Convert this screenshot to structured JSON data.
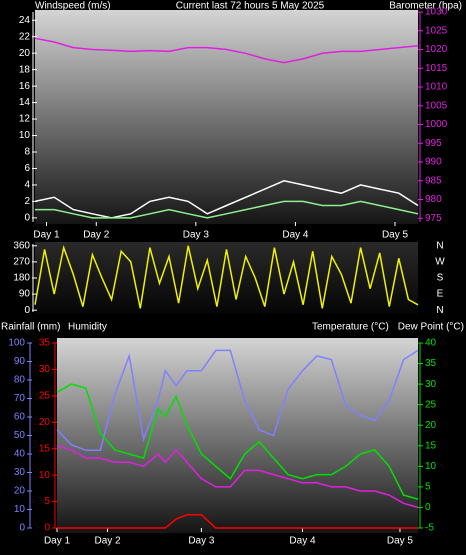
{
  "chart_data": [
    {
      "type": "line",
      "title": "Current last 72 hours 5 May 2025",
      "y_label": "Windspeed (m/s)",
      "y2_label": "Barometer (hpa)",
      "x": [
        0,
        5,
        10,
        15,
        20,
        25,
        30,
        35,
        40,
        45,
        50,
        55,
        60,
        65,
        70,
        75,
        80,
        85,
        90,
        95,
        100
      ],
      "xlim": [
        0,
        100
      ],
      "xticks": [
        {
          "value": 3,
          "label": "Day 1"
        },
        {
          "value": 16,
          "label": "Day 2"
        },
        {
          "value": 42,
          "label": "Day 3"
        },
        {
          "value": 68,
          "label": "Day 4"
        },
        {
          "value": 94,
          "label": "Day 5"
        }
      ],
      "ylim": [
        -0.5,
        25
      ],
      "yticks": [
        0,
        2,
        4,
        6,
        8,
        10,
        12,
        14,
        16,
        18,
        20,
        22,
        24
      ],
      "y2lim": [
        974,
        1030
      ],
      "y2ticks": [
        975,
        980,
        985,
        990,
        995,
        1000,
        1005,
        1010,
        1015,
        1020,
        1025,
        1030
      ],
      "series": [
        {
          "name": "Barometer",
          "color": "#e020e0",
          "axis": "y2",
          "values": [
            1023,
            1022,
            1020.5,
            1020,
            1019.8,
            1019.5,
            1019.7,
            1019.5,
            1020.5,
            1020.5,
            1020,
            1019,
            1017.5,
            1016.5,
            1017.5,
            1019,
            1019.5,
            1019.5,
            1020,
            1020.5,
            1021
          ]
        },
        {
          "name": "Gust",
          "color": "#ffffff",
          "axis": "y",
          "values": [
            2,
            2.5,
            1,
            0.5,
            0,
            0.5,
            2,
            2.5,
            2,
            0.5,
            1.5,
            2.5,
            3.5,
            4.5,
            4,
            3.5,
            3,
            4,
            3.5,
            3,
            1.5
          ]
        },
        {
          "name": "Windspeed",
          "color": "#90f090",
          "axis": "y",
          "values": [
            1,
            1,
            0.5,
            0,
            0,
            0,
            0.5,
            1,
            0.5,
            0,
            0.5,
            1,
            1.5,
            2,
            2,
            1.5,
            1.5,
            2,
            1.5,
            1,
            0.5
          ]
        }
      ]
    },
    {
      "type": "line",
      "x": [
        0,
        2.5,
        5,
        7.5,
        10,
        12.5,
        15,
        17.5,
        20,
        22.5,
        25,
        27.5,
        30,
        32.5,
        35,
        37.5,
        40,
        42.5,
        45,
        47.5,
        50,
        52.5,
        55,
        57.5,
        60,
        62.5,
        65,
        67.5,
        70,
        72.5,
        75,
        77.5,
        80,
        82.5,
        85,
        87.5,
        90,
        92.5,
        95,
        97.5,
        100
      ],
      "xlim": [
        0,
        100
      ],
      "ylim": [
        -10,
        370
      ],
      "yticks": [
        0,
        90,
        180,
        270,
        360
      ],
      "y2lim": [
        -10,
        370
      ],
      "y2ticks": [
        {
          "value": 360,
          "label": "N"
        },
        {
          "value": 270,
          "label": "W"
        },
        {
          "value": 180,
          "label": "S"
        },
        {
          "value": 90,
          "label": "E"
        },
        {
          "value": 0,
          "label": "N"
        }
      ],
      "series": [
        {
          "name": "Wind direction",
          "color": "#f0f000",
          "axis": "y",
          "values": [
            30,
            340,
            90,
            350,
            200,
            20,
            310,
            180,
            60,
            330,
            270,
            10,
            350,
            150,
            300,
            40,
            360,
            120,
            280,
            20,
            340,
            60,
            300,
            180,
            20,
            350,
            90,
            270,
            30,
            330,
            10,
            300,
            200,
            40,
            350,
            120,
            320,
            20,
            290,
            60,
            30
          ]
        }
      ]
    },
    {
      "type": "line",
      "rain_label": "Rainfall (mm)",
      "humidity_label": "Humidity",
      "temp_label": "Temperature (°C)",
      "dew_label": "Dew Point (°C)",
      "x": [
        0,
        4,
        8,
        12,
        16,
        20,
        24,
        28,
        30,
        33,
        36,
        40,
        44,
        48,
        52,
        56,
        60,
        64,
        68,
        72,
        76,
        80,
        84,
        88,
        92,
        96,
        100
      ],
      "xlim": [
        0,
        100
      ],
      "xticks": [
        {
          "value": 0,
          "label": "Day 1"
        },
        {
          "value": 14,
          "label": "Day 2"
        },
        {
          "value": 40,
          "label": "Day 3"
        },
        {
          "value": 68,
          "label": "Day 4"
        },
        {
          "value": 95,
          "label": "Day 5"
        }
      ],
      "ylim": [
        0,
        100
      ],
      "yticks": [
        0,
        10,
        20,
        30,
        40,
        50,
        60,
        70,
        80,
        90,
        100
      ],
      "y2lim": [
        -5,
        40
      ],
      "y2ticks": [
        -5,
        0,
        5,
        10,
        15,
        20,
        25,
        30,
        35,
        40
      ],
      "y3lim": [
        0,
        35
      ],
      "y3ticks": [
        0,
        5,
        10,
        15,
        20,
        25,
        30,
        35
      ],
      "series": [
        {
          "name": "Humidity",
          "color": "#8080ff",
          "axis": "y",
          "values": [
            53,
            45,
            42,
            42,
            72,
            93,
            48,
            69,
            85,
            77,
            85,
            85,
            96,
            96,
            69,
            53,
            50,
            75,
            85,
            93,
            91,
            66,
            61,
            58,
            69,
            91,
            96
          ]
        },
        {
          "name": "Temperature",
          "color": "#00e000",
          "axis": "y2",
          "values": [
            28,
            30,
            29,
            18,
            14,
            13,
            12,
            24,
            22,
            27,
            20,
            13,
            10,
            7,
            13,
            16,
            12,
            8,
            7,
            8,
            8,
            10,
            13,
            14,
            10,
            3,
            2
          ]
        },
        {
          "name": "Dew Point",
          "color": "#e020e0",
          "axis": "y2",
          "values": [
            15,
            14,
            12,
            12,
            11,
            11,
            10,
            13,
            11,
            14,
            11,
            7,
            5,
            5,
            9,
            9,
            8,
            7,
            6,
            6,
            5,
            5,
            4,
            4,
            3,
            1,
            0
          ]
        },
        {
          "name": "Rainfall",
          "color": "#ff0000",
          "axis": "y3",
          "values": [
            0,
            0,
            0,
            0,
            0,
            0,
            0,
            0,
            0,
            1.7,
            2.5,
            2.5,
            0,
            0,
            0,
            0,
            0,
            0,
            0,
            0,
            0,
            0,
            0,
            0,
            0,
            0,
            0
          ]
        }
      ]
    }
  ]
}
